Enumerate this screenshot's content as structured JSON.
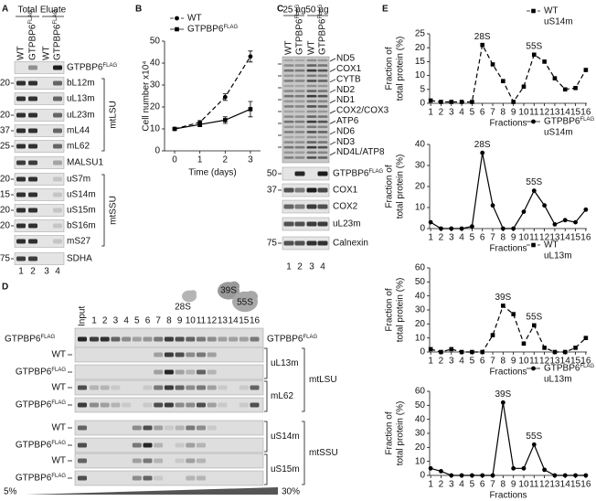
{
  "panel_labels": [
    "A",
    "B",
    "C",
    "D",
    "E"
  ],
  "panel_a": {
    "headers": [
      "Total",
      "Eluate"
    ],
    "lanes": [
      "WT",
      "GTPBP6FLAG",
      "WT",
      "GTPBP6FLAG"
    ],
    "lane_numbers": [
      1,
      2,
      3,
      4
    ],
    "rows": [
      {
        "label": "GTPBP6FLAG"
      },
      {
        "label": "bL12m",
        "marker": 20
      },
      {
        "label": "uL13m"
      },
      {
        "label": "uL23m",
        "marker": 20
      },
      {
        "label": "mL44",
        "marker": 37
      },
      {
        "label": "mL62",
        "marker": 25
      },
      {
        "label": "MALSU1"
      },
      {
        "label": "uS7m",
        "marker": 20
      },
      {
        "label": "uS14m",
        "marker": 15
      },
      {
        "label": "uS15m",
        "marker": 20
      },
      {
        "label": "bS16m",
        "marker": 20
      },
      {
        "label": "mS27"
      },
      {
        "label": "SDHA",
        "marker": 75
      }
    ],
    "groups": [
      "mtLSU",
      "mtSSU"
    ]
  },
  "panel_c": {
    "headers": [
      "25 µg",
      "50 µg"
    ],
    "lanes": [
      "WT",
      "GTPBP6FLAG",
      "WT",
      "GTPBP6FLAG"
    ],
    "lane_numbers": [
      1,
      2,
      3,
      4
    ],
    "translation_products": [
      "ND5",
      "COX1",
      "CYTB",
      "ND2",
      "ND1",
      "COX2/COX3",
      "ATP6",
      "ND6",
      "ND3",
      "ND4L/ATP8"
    ],
    "blots": [
      {
        "label": "GTPBP6FLAG",
        "marker": 50
      },
      {
        "label": "COX1",
        "marker": 37
      },
      {
        "label": "COX2"
      },
      {
        "label": "uL23m"
      },
      {
        "label": "Calnexin",
        "marker": 75
      }
    ]
  },
  "panel_d": {
    "input": "Input",
    "fractions": [
      1,
      2,
      3,
      4,
      5,
      6,
      7,
      8,
      9,
      10,
      11,
      12,
      13,
      14,
      15,
      16
    ],
    "particles": [
      "28S",
      "39S",
      "55S"
    ],
    "top_blot": {
      "label": "GTPBP6FLAG",
      "protein": "GTPBP6FLAG"
    },
    "pairs": [
      {
        "protein": "uL13m",
        "rows": [
          "WT",
          "GTPBP6FLAG"
        ]
      },
      {
        "protein": "mL62",
        "rows": [
          "WT",
          "GTPBP6FLAG"
        ]
      },
      {
        "protein": "uS14m",
        "rows": [
          "WT",
          "GTPBP6FLAG"
        ]
      },
      {
        "protein": "uS15m",
        "rows": [
          "WT",
          "GTPBP6FLAG"
        ]
      }
    ],
    "groups": [
      "mtLSU",
      "mtSSU"
    ],
    "gradient": [
      "5%",
      "30%"
    ]
  },
  "chart_data": [
    {
      "type": "line",
      "xlabel": "Time (days)",
      "ylabel": [
        "Cell number x10⁴"
      ],
      "x": [
        0,
        1,
        2,
        3
      ],
      "xlim": [
        -0.4,
        3.4
      ],
      "xticks": [
        0,
        1,
        2,
        3
      ],
      "ylim": [
        0,
        50
      ],
      "yticks": [
        0,
        10,
        20,
        30,
        40,
        50
      ],
      "series": [
        {
          "name": "WT",
          "color": "#000000",
          "line_style": "dashed",
          "marker": "circle",
          "values": [
            10,
            13,
            24.5,
            43
          ],
          "errors": [
            0.5,
            0.8,
            1.5,
            2.5
          ]
        },
        {
          "name": "GTPBP6FLAG",
          "color": "#000000",
          "line_style": "solid",
          "marker": "square",
          "values": [
            10,
            12,
            14,
            19
          ],
          "errors": [
            0.5,
            1,
            1.5,
            3.5
          ]
        }
      ]
    },
    {
      "type": "line",
      "xlabel": "Fractions",
      "ylabel": [
        "Fraction of",
        "total protein (%)"
      ],
      "x": [
        1,
        2,
        3,
        4,
        5,
        6,
        7,
        8,
        9,
        10,
        11,
        12,
        13,
        14,
        15,
        16
      ],
      "xlim": [
        0.9,
        16.1
      ],
      "xticks": [
        1,
        2,
        3,
        4,
        5,
        6,
        7,
        8,
        9,
        10,
        11,
        12,
        13,
        14,
        15,
        16
      ],
      "ylim": [
        0,
        25
      ],
      "yticks": [
        0,
        5,
        10,
        15,
        20,
        25
      ],
      "series": [
        {
          "name": "WT",
          "protein": "uS14m",
          "color": "#000000",
          "line_style": "dashed",
          "marker": "square",
          "values": [
            1,
            0.5,
            0.5,
            0.5,
            0.5,
            21,
            14,
            8,
            0.5,
            6,
            17.5,
            15,
            9,
            5,
            5.5,
            12
          ]
        }
      ],
      "annotations": [
        {
          "text": "28S",
          "x": 6
        },
        {
          "text": "55S",
          "x": 11
        }
      ]
    },
    {
      "type": "line",
      "xlabel": "Fractions",
      "ylabel": [
        "Fraction of",
        "total protein (%)"
      ],
      "x": [
        1,
        2,
        3,
        4,
        5,
        6,
        7,
        8,
        9,
        10,
        11,
        12,
        13,
        14,
        15,
        16
      ],
      "xlim": [
        0.9,
        16.1
      ],
      "xticks": [
        1,
        2,
        3,
        4,
        5,
        6,
        7,
        8,
        9,
        10,
        11,
        12,
        13,
        14,
        15,
        16
      ],
      "ylim": [
        0,
        40
      ],
      "yticks": [
        0,
        10,
        20,
        30,
        40
      ],
      "series": [
        {
          "name": "GTPBP6FLAG",
          "protein": "uS14m",
          "color": "#000000",
          "line_style": "solid",
          "marker": "circle",
          "values": [
            3,
            0,
            0,
            0,
            1,
            36,
            11,
            0,
            0,
            8,
            18,
            11,
            2,
            4,
            3,
            9
          ]
        }
      ],
      "annotations": [
        {
          "text": "28S",
          "x": 6
        },
        {
          "text": "55S",
          "x": 11
        }
      ]
    },
    {
      "type": "line",
      "xlabel": "Fractions",
      "ylabel": [
        "Fraction of",
        "total protein (%)"
      ],
      "x": [
        1,
        2,
        3,
        4,
        5,
        6,
        7,
        8,
        9,
        10,
        11,
        12,
        13,
        14,
        15,
        16
      ],
      "xlim": [
        0.9,
        16.1
      ],
      "xticks": [
        1,
        2,
        3,
        4,
        5,
        6,
        7,
        8,
        9,
        10,
        11,
        12,
        13,
        14,
        15,
        16
      ],
      "ylim": [
        0,
        60
      ],
      "yticks": [
        0,
        10,
        20,
        30,
        40,
        50,
        60
      ],
      "series": [
        {
          "name": "WT",
          "protein": "uL13m",
          "color": "#000000",
          "line_style": "dashed",
          "marker": "square",
          "values": [
            2,
            0,
            2,
            0,
            0,
            0,
            12,
            33,
            27,
            6,
            19,
            3,
            0,
            0,
            3,
            10
          ]
        }
      ],
      "annotations": [
        {
          "text": "39S",
          "x": 8
        },
        {
          "text": "55S",
          "x": 11
        }
      ]
    },
    {
      "type": "line",
      "xlabel": "Fractions",
      "ylabel": [
        "Fraction of",
        "total protein (%)"
      ],
      "x": [
        1,
        2,
        3,
        4,
        5,
        6,
        7,
        8,
        9,
        10,
        11,
        12,
        13,
        14,
        15,
        16
      ],
      "xlim": [
        0.9,
        16.1
      ],
      "xticks": [
        1,
        2,
        3,
        4,
        5,
        6,
        7,
        8,
        9,
        10,
        11,
        12,
        13,
        14,
        15,
        16
      ],
      "ylim": [
        0,
        60
      ],
      "yticks": [
        0,
        10,
        20,
        30,
        40,
        50,
        60
      ],
      "series": [
        {
          "name": "GTPBP6FLAG",
          "protein": "uL13m",
          "color": "#000000",
          "line_style": "solid",
          "marker": "circle",
          "values": [
            5,
            3,
            0,
            0,
            0,
            0,
            0,
            52,
            5,
            5,
            22,
            4,
            0,
            0,
            0,
            0
          ]
        }
      ],
      "annotations": [
        {
          "text": "39S",
          "x": 8
        },
        {
          "text": "55S",
          "x": 11
        }
      ]
    }
  ]
}
